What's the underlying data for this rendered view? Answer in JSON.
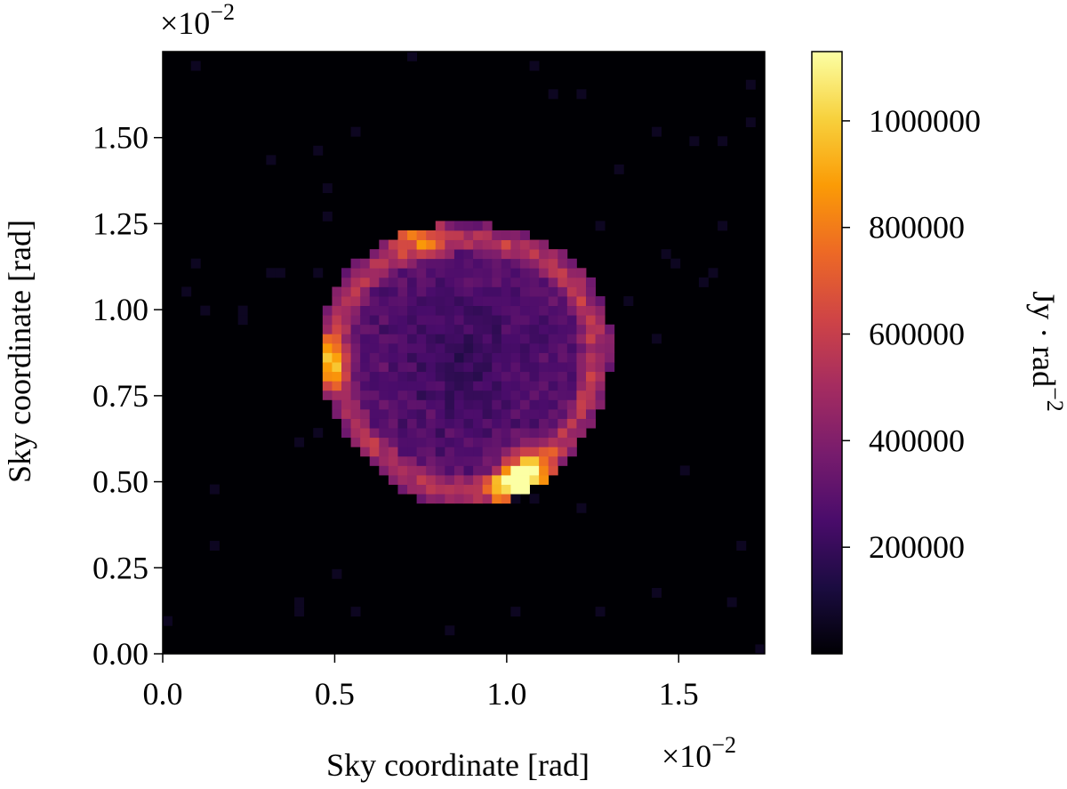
{
  "chart_data": {
    "type": "heatmap",
    "title": "",
    "xlabel": "Sky coordinate [rad]",
    "ylabel": "Sky coordinate [rad]",
    "x_multiplier": "×10",
    "x_multiplier_exp": "−2",
    "y_multiplier": "×10",
    "y_multiplier_exp": "−2",
    "xlim": [
      0.0,
      1.75
    ],
    "ylim": [
      0.0,
      1.75
    ],
    "xticks": [
      {
        "value": 0.0,
        "label": "0.0"
      },
      {
        "value": 0.5,
        "label": "0.5"
      },
      {
        "value": 1.0,
        "label": "1.0"
      },
      {
        "value": 1.5,
        "label": "1.5"
      }
    ],
    "yticks": [
      {
        "value": 0.0,
        "label": "0.00"
      },
      {
        "value": 0.25,
        "label": "0.25"
      },
      {
        "value": 0.5,
        "label": "0.50"
      },
      {
        "value": 0.75,
        "label": "0.75"
      },
      {
        "value": 1.0,
        "label": "1.00"
      },
      {
        "value": 1.25,
        "label": "1.25"
      },
      {
        "value": 1.5,
        "label": "1.50"
      }
    ],
    "grid_size": [
      64,
      64
    ],
    "colormap": "inferno",
    "colormap_stops": [
      "#000004",
      "#1b0c41",
      "#4a0c6b",
      "#781c6d",
      "#a52c60",
      "#cf4446",
      "#ed6925",
      "#fb9b06",
      "#f7d13d",
      "#fcffa4"
    ],
    "colorbar": {
      "label": "Jy · rad",
      "label_exp": "−2",
      "min": 0,
      "max": 1130000,
      "ticks": [
        {
          "value": 200000,
          "label": "200000"
        },
        {
          "value": 400000,
          "label": "400000"
        },
        {
          "value": 600000,
          "label": "600000"
        },
        {
          "value": 800000,
          "label": "800000"
        },
        {
          "value": 1000000,
          "label": "1000000"
        }
      ]
    },
    "structure": {
      "shape": "shell (supernova remnant)",
      "center": [
        0.88,
        0.85
      ],
      "radius_x": 0.4,
      "radius_y": 0.42,
      "interior_intensity": 150000,
      "rim_peak_intensity": 1130000,
      "brightest_regions": [
        {
          "x": 0.45,
          "y": 0.85,
          "value": 1100000
        },
        {
          "x": 1.02,
          "y": 0.48,
          "value": 1000000
        },
        {
          "x": 1.07,
          "y": 0.53,
          "value": 950000
        },
        {
          "x": 0.74,
          "y": 1.24,
          "value": 850000
        }
      ]
    }
  }
}
